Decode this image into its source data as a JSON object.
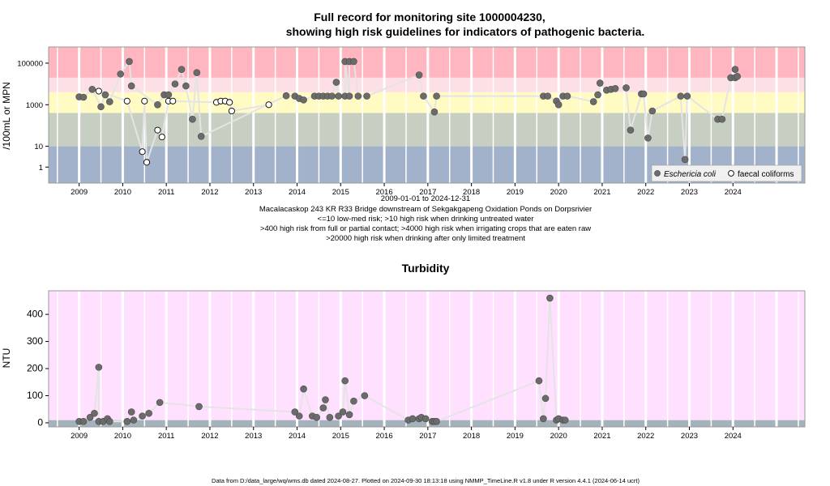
{
  "chart_data": [
    {
      "type": "scatter",
      "title": "Full record for monitoring site 1000004230,",
      "subtitle": "showing high risk guidelines for indicators of pathogenic bacteria.",
      "ylabel": "/100mL or MPN",
      "y_scale": "log",
      "ylim": [
        0.17,
        600000
      ],
      "xlim": [
        2008.3,
        2025.65
      ],
      "x_ticks": [
        "2009",
        "2010",
        "2011",
        "2012",
        "2013",
        "2014",
        "2015",
        "2016",
        "2017",
        "2018",
        "2019",
        "2020",
        "2021",
        "2022",
        "2023",
        "2024"
      ],
      "y_ticks": [
        "1",
        "10",
        "1000",
        "100000"
      ],
      "bands": [
        {
          "from": 0.17,
          "to": 10,
          "color": "#a3b2cb"
        },
        {
          "from": 10,
          "to": 400,
          "color": "#c6cfc2"
        },
        {
          "from": 400,
          "to": 4000,
          "color": "#fffbc3"
        },
        {
          "from": 4000,
          "to": 20000,
          "color": "#fde0e6"
        },
        {
          "from": 20000,
          "to": 600000,
          "color": "#ffb6c1"
        }
      ],
      "grid": true,
      "legend_position": "bottom-right",
      "legend": [
        "Eschericia coli",
        "faecal coliforms"
      ],
      "caption_lines": [
        "2009-01-01 to 2024-12-31",
        "Macalacaskop 243 KR R33 Bridge downstream of Sekgakgapeng Oxidation Ponds on Dorpsrivier",
        "<=10 low-med risk; >10 high risk when drinking untreated water",
        ">400 high risk from full or partial contact; >4000 high risk when irrigating crops that are eaten raw",
        ">20000 high risk when drinking after only limited treatment"
      ],
      "series": [
        {
          "name": "Eschericia coli",
          "color": "#6b6b6b",
          "points": [
            [
              2009.0,
              2400
            ],
            [
              2009.1,
              2300
            ],
            [
              2009.3,
              5500
            ],
            [
              2009.5,
              800
            ],
            [
              2009.6,
              3000
            ],
            [
              2009.7,
              1400
            ],
            [
              2009.95,
              30000
            ],
            [
              2010.15,
              120000
            ],
            [
              2010.2,
              8000
            ],
            [
              2010.8,
              1000
            ],
            [
              2010.95,
              3000
            ],
            [
              2011.05,
              3000
            ],
            [
              2011.2,
              10000
            ],
            [
              2011.35,
              50000
            ],
            [
              2011.45,
              8000
            ],
            [
              2011.6,
              200
            ],
            [
              2011.7,
              35000
            ],
            [
              2011.8,
              30
            ],
            [
              2013.75,
              2700
            ],
            [
              2013.95,
              2600
            ],
            [
              2014.05,
              2000
            ],
            [
              2014.15,
              1700
            ],
            [
              2014.4,
              2600
            ],
            [
              2014.5,
              2600
            ],
            [
              2014.6,
              2600
            ],
            [
              2014.7,
              2600
            ],
            [
              2014.8,
              2600
            ],
            [
              2014.9,
              12000
            ],
            [
              2014.95,
              2600
            ],
            [
              2015.1,
              2600
            ],
            [
              2015.1,
              120000
            ],
            [
              2015.2,
              2600
            ],
            [
              2015.2,
              120000
            ],
            [
              2015.3,
              120000
            ],
            [
              2015.4,
              2600
            ],
            [
              2015.6,
              2600
            ],
            [
              2016.8,
              27000
            ],
            [
              2016.9,
              2600
            ],
            [
              2017.15,
              450
            ],
            [
              2017.2,
              2600
            ],
            [
              2019.65,
              2600
            ],
            [
              2019.75,
              2600
            ],
            [
              2019.95,
              1500
            ],
            [
              2020.0,
              1000
            ],
            [
              2020.1,
              2600
            ],
            [
              2020.2,
              2600
            ],
            [
              2020.8,
              1400
            ],
            [
              2020.9,
              3000
            ],
            [
              2020.95,
              11000
            ],
            [
              2021.1,
              5000
            ],
            [
              2021.2,
              5500
            ],
            [
              2021.3,
              6000
            ],
            [
              2021.55,
              6500
            ],
            [
              2021.65,
              60
            ],
            [
              2021.9,
              3300
            ],
            [
              2021.95,
              3300
            ],
            [
              2022.05,
              25
            ],
            [
              2022.15,
              500
            ],
            [
              2022.8,
              2600
            ],
            [
              2022.9,
              2.3
            ],
            [
              2022.95,
              2600
            ],
            [
              2023.65,
              200
            ],
            [
              2023.75,
              200
            ],
            [
              2023.95,
              20000
            ],
            [
              2024.05,
              20000
            ],
            [
              2024.05,
              50000
            ],
            [
              2024.1,
              23000
            ]
          ]
        },
        {
          "name": "faecal coliforms",
          "color": "#ffffff",
          "points": [
            [
              2009.45,
              4500
            ],
            [
              2010.1,
              1500
            ],
            [
              2010.45,
              5.5
            ],
            [
              2010.5,
              1500
            ],
            [
              2010.55,
              1.7
            ],
            [
              2010.8,
              60
            ],
            [
              2010.9,
              28
            ],
            [
              2011.05,
              1500
            ],
            [
              2011.15,
              1500
            ],
            [
              2012.15,
              1300
            ],
            [
              2012.25,
              1500
            ],
            [
              2012.35,
              1500
            ],
            [
              2012.45,
              1300
            ],
            [
              2012.5,
              500
            ],
            [
              2013.35,
              1000
            ]
          ]
        }
      ]
    },
    {
      "type": "scatter",
      "title": "Turbidity",
      "ylabel": "NTU",
      "ylim": [
        -15,
        487
      ],
      "xlim": [
        2008.3,
        2025.65
      ],
      "x_ticks": [
        "2009",
        "2010",
        "2011",
        "2012",
        "2013",
        "2014",
        "2015",
        "2016",
        "2017",
        "2018",
        "2019",
        "2020",
        "2021",
        "2022",
        "2023",
        "2024"
      ],
      "y_ticks": [
        "0",
        "100",
        "200",
        "300",
        "400"
      ],
      "bands": [
        {
          "from": -15,
          "to": 10,
          "color": "#a3b2bb"
        },
        {
          "from": 10,
          "to": 487,
          "color": "#ffe0ff"
        }
      ],
      "grid": true,
      "series": [
        {
          "name": "",
          "color": "#6b6b6b",
          "points": [
            [
              2009.0,
              5
            ],
            [
              2009.1,
              5
            ],
            [
              2009.25,
              20
            ],
            [
              2009.35,
              35
            ],
            [
              2009.45,
              205
            ],
            [
              2009.45,
              5
            ],
            [
              2009.55,
              5
            ],
            [
              2009.65,
              15
            ],
            [
              2009.7,
              5
            ],
            [
              2010.1,
              5
            ],
            [
              2010.2,
              40
            ],
            [
              2010.25,
              10
            ],
            [
              2010.45,
              25
            ],
            [
              2010.6,
              35
            ],
            [
              2010.85,
              75
            ],
            [
              2011.75,
              60
            ],
            [
              2013.95,
              40
            ],
            [
              2014.05,
              25
            ],
            [
              2014.15,
              125
            ],
            [
              2014.35,
              25
            ],
            [
              2014.45,
              20
            ],
            [
              2014.6,
              55
            ],
            [
              2014.65,
              85
            ],
            [
              2014.75,
              20
            ],
            [
              2014.95,
              25
            ],
            [
              2015.05,
              40
            ],
            [
              2015.1,
              155
            ],
            [
              2015.2,
              30
            ],
            [
              2015.3,
              80
            ],
            [
              2015.55,
              100
            ],
            [
              2016.55,
              10
            ],
            [
              2016.65,
              15
            ],
            [
              2016.8,
              15
            ],
            [
              2016.85,
              20
            ],
            [
              2016.95,
              15
            ],
            [
              2017.1,
              5
            ],
            [
              2017.15,
              5
            ],
            [
              2017.2,
              5
            ],
            [
              2019.55,
              155
            ],
            [
              2019.65,
              15
            ],
            [
              2019.7,
              90
            ],
            [
              2019.8,
              460
            ],
            [
              2019.95,
              10
            ],
            [
              2020.0,
              15
            ],
            [
              2020.1,
              10
            ],
            [
              2020.15,
              10
            ]
          ]
        }
      ]
    }
  ],
  "footer": "Data from D:/data_large/wq/wms.db dated 2024-08-27. Plotted on 2024-09-30 18:13:18 using NMMP_TimeLine.R v1.8 under R version 4.4.1 (2024-06-14 ucrt)"
}
